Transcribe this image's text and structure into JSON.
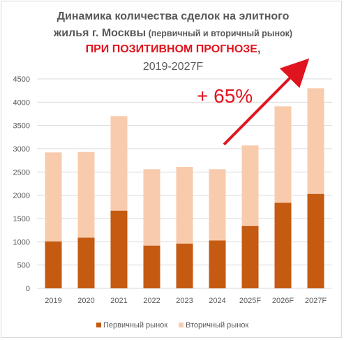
{
  "chart_data": {
    "type": "bar",
    "stacked": true,
    "title_line1": "Динамика количества сделок на элитного",
    "title_line2_main": "жилья г. Москвы",
    "title_line2_sub": " (первичный и вторичный рынок)",
    "title_line3_red": "ПРИ ПОЗИТИВНОМ ПРОГНОЗЕ",
    "title_line3_comma": ",",
    "title_line4": "2019-2027F",
    "categories": [
      "2019",
      "2020",
      "2021",
      "2022",
      "2023",
      "2024",
      "2025F",
      "2026F",
      "2027F"
    ],
    "series": [
      {
        "name": "Первичный рынок",
        "color": "#c55a11",
        "values": [
          1010,
          1090,
          1670,
          920,
          960,
          1030,
          1340,
          1840,
          2030
        ]
      },
      {
        "name": "Вторичный рынок",
        "color": "#f8cbad",
        "values": [
          1910,
          1840,
          2030,
          1640,
          1650,
          1530,
          1730,
          2070,
          2270
        ]
      }
    ],
    "ylim": [
      0,
      4500
    ],
    "yticks": [
      0,
      500,
      1000,
      1500,
      2000,
      2500,
      3000,
      3500,
      4000,
      4500
    ],
    "grid": true,
    "legend_position": "bottom",
    "annotation": {
      "text": "+ 65%",
      "color": "#e0141e"
    },
    "xlabel": "",
    "ylabel": ""
  }
}
